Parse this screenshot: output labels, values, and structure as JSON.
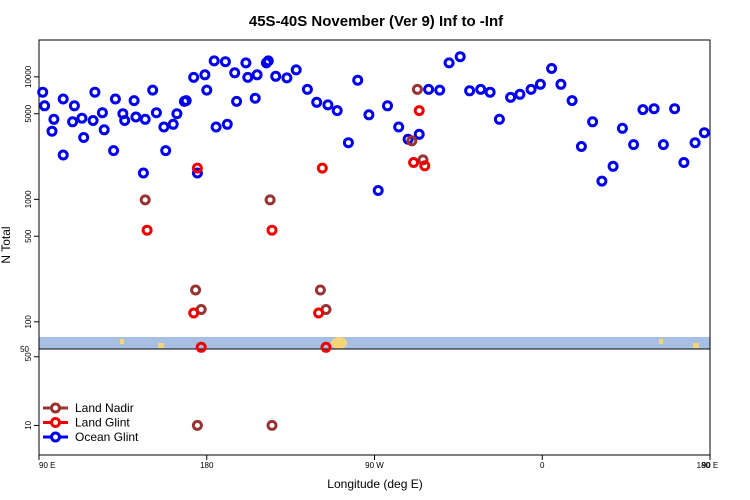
{
  "chart_data": {
    "type": "scatter",
    "title": "45S-40S November (Ver 9)   Inf to -Inf",
    "xlabel": "Longitude (deg E)",
    "ylabel": "N Total",
    "log_y": true,
    "x_axis": {
      "range_deg": [
        90,
        450
      ],
      "ticks": [
        90,
        180,
        270,
        360,
        450,
        540
      ],
      "tick_labels": [
        "90 E",
        "180",
        "90 W",
        "0",
        "90 E",
        "180"
      ]
    },
    "upper_panel": {
      "ylim": [
        60,
        20000
      ],
      "ticks": [
        100,
        500,
        1000,
        5000,
        10000
      ],
      "tick_labels": [
        "100",
        "500",
        "1000",
        "5000",
        "10000"
      ]
    },
    "lower_panel": {
      "ylim": [
        5,
        60
      ],
      "ticks": [
        10,
        50
      ],
      "tick_labels": [
        "10",
        "50"
      ]
    },
    "break_label": "50",
    "legend_position": "bottom-left",
    "series": [
      {
        "name": "Ocean Glint",
        "color": "#0000ee",
        "points": [
          [
            92,
            7500
          ],
          [
            97,
            3600
          ],
          [
            103,
            6600
          ],
          [
            108,
            4300
          ],
          [
            113,
            4600
          ],
          [
            119,
            4400
          ],
          [
            124,
            5100
          ],
          [
            130,
            2500
          ],
          [
            135,
            5000
          ],
          [
            141,
            6400
          ],
          [
            146,
            1640
          ],
          [
            151,
            7800
          ],
          [
            157,
            3900
          ],
          [
            162,
            4100
          ],
          [
            168,
            6300
          ],
          [
            173,
            9900
          ],
          [
            179,
            10400
          ],
          [
            184,
            13500
          ],
          [
            190,
            13300
          ],
          [
            195,
            10800
          ],
          [
            201,
            13000
          ],
          [
            206,
            6700
          ],
          [
            212,
            13000
          ],
          [
            217,
            10100
          ],
          [
            223,
            9800
          ],
          [
            228,
            11400
          ],
          [
            234,
            7900
          ],
          [
            239,
            6200
          ],
          [
            245,
            5900
          ],
          [
            250,
            5300
          ],
          [
            256,
            2900
          ],
          [
            261,
            9400
          ],
          [
            267,
            4900
          ],
          [
            272,
            1180
          ],
          [
            277,
            5800
          ],
          [
            283,
            3900
          ],
          [
            288,
            3100
          ],
          [
            294,
            3400
          ],
          [
            299,
            7900
          ],
          [
            305,
            7800
          ],
          [
            310,
            13000
          ],
          [
            316,
            14600
          ],
          [
            321,
            7700
          ],
          [
            327,
            7900
          ],
          [
            332,
            7500
          ],
          [
            337,
            4500
          ],
          [
            343,
            6800
          ],
          [
            348,
            7200
          ],
          [
            354,
            7900
          ],
          [
            359,
            8700
          ],
          [
            365,
            11700
          ],
          [
            370,
            8700
          ],
          [
            376,
            6400
          ],
          [
            381,
            2700
          ],
          [
            387,
            4300
          ],
          [
            392,
            1410
          ],
          [
            398,
            1860
          ],
          [
            403,
            3800
          ],
          [
            409,
            2800
          ],
          [
            414,
            5400
          ],
          [
            420,
            5500
          ],
          [
            425,
            2800
          ],
          [
            431,
            5500
          ],
          [
            436,
            2000
          ],
          [
            442,
            2900
          ],
          [
            447,
            3500
          ],
          [
            453,
            5800
          ],
          [
            458,
            4500
          ],
          [
            463,
            2300
          ],
          [
            469,
            5800
          ],
          [
            474,
            3200
          ],
          [
            480,
            7500
          ],
          [
            485,
            3700
          ],
          [
            491,
            6600
          ],
          [
            496,
            4400
          ],
          [
            502,
            4700
          ],
          [
            507,
            4500
          ],
          [
            513,
            5100
          ],
          [
            518,
            2500
          ],
          [
            524,
            5000
          ],
          [
            529,
            6400
          ],
          [
            535,
            1640
          ],
          [
            540,
            7800
          ],
          [
            545,
            3900
          ],
          [
            551,
            4100
          ],
          [
            556,
            6300
          ],
          [
            562,
            9900
          ],
          [
            567,
            10400
          ],
          [
            573,
            13500
          ]
        ]
      },
      {
        "name": "Land Nadir",
        "color": "#993333",
        "points": [
          [
            147,
            990
          ],
          [
            174,
            182
          ],
          [
            177,
            126
          ],
          [
            290,
            3000
          ],
          [
            293,
            7900
          ],
          [
            296,
            2100
          ],
          [
            574,
            990
          ],
          [
            601,
            182
          ],
          [
            604,
            126
          ],
          [
            175,
            10
          ],
          [
            575,
            10
          ]
        ]
      },
      {
        "name": "Land Glint",
        "color": "#ee0000",
        "points": [
          [
            148,
            560
          ],
          [
            175,
            1800
          ],
          [
            173,
            118
          ],
          [
            177,
            62
          ],
          [
            291,
            2000
          ],
          [
            294,
            5300
          ],
          [
            297,
            1880
          ],
          [
            575,
            560
          ],
          [
            602,
            1800
          ],
          [
            600,
            118
          ],
          [
            604,
            62
          ]
        ]
      }
    ]
  }
}
